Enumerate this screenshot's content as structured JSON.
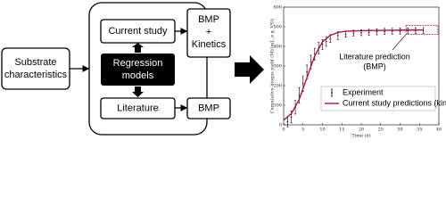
{
  "diagram": {
    "input": [
      "Substrate",
      "characteristics"
    ],
    "current_study": "Current study",
    "model": [
      "Regression",
      "models"
    ],
    "literature": "Literature",
    "output_current": [
      "BMP",
      "+",
      "Kinetics"
    ],
    "output_literature": "BMP"
  },
  "chart_data": {
    "type": "line",
    "xlabel": "Time (d)",
    "ylabel": "Cumulative biogas yield (Ml/(mL_e g_VS))",
    "xlim": [
      0,
      40
    ],
    "xticks": [
      0,
      5,
      10,
      15,
      20,
      25,
      30,
      35,
      40
    ],
    "ylim": [
      0,
      600
    ],
    "yticks": [
      0,
      100,
      200,
      300,
      400,
      500,
      600
    ],
    "annotation": [
      "Literature prediction",
      "(BMP)"
    ],
    "annotation_color": "#c0103a",
    "series": [
      {
        "name": "Experiment",
        "color": "#000000",
        "marker": "errorbar",
        "x": [
          1,
          2,
          3,
          4,
          5,
          6,
          7,
          8,
          9,
          10,
          11,
          12,
          14,
          16,
          18,
          20,
          22,
          24,
          26,
          28,
          30,
          32,
          34,
          36
        ],
        "values": [
          15,
          40,
          90,
          150,
          210,
          270,
          320,
          360,
          390,
          410,
          425,
          440,
          455,
          462,
          468,
          470,
          472,
          474,
          476,
          477,
          478,
          479,
          480,
          481
        ],
        "errors": [
          25,
          30,
          35,
          40,
          40,
          35,
          35,
          30,
          30,
          25,
          25,
          20,
          20,
          15,
          15,
          15,
          15,
          15,
          15,
          15,
          15,
          15,
          15,
          15
        ]
      },
      {
        "name": "Current study predictions (kinetics)",
        "color": "#b0103a",
        "x": [
          0,
          2,
          4,
          6,
          8,
          10,
          12,
          14,
          16,
          20,
          24,
          28,
          32,
          36
        ],
        "values": [
          24,
          57,
          129,
          240,
          351,
          423,
          456,
          471,
          477,
          480,
          481,
          482,
          483,
          484
        ]
      }
    ],
    "legend": "lower right"
  }
}
